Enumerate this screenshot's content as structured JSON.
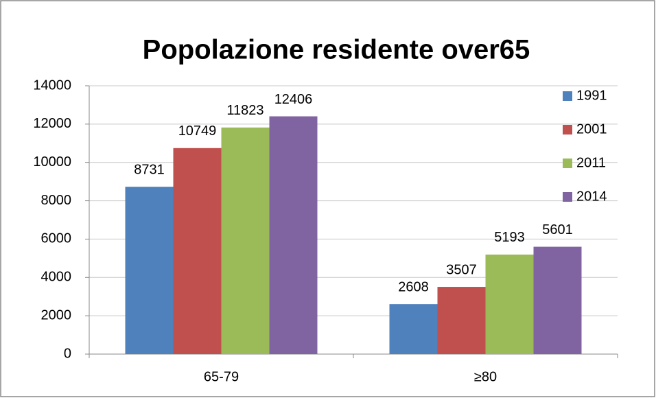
{
  "chart_data": {
    "type": "bar",
    "title": "Popolazione residente over65",
    "categories": [
      "65-79",
      "≥80"
    ],
    "series": [
      {
        "name": "1991",
        "color": "#4f81bd",
        "values": [
          8731,
          2608
        ]
      },
      {
        "name": "2001",
        "color": "#c0504d",
        "values": [
          10749,
          3507
        ]
      },
      {
        "name": "2011",
        "color": "#9bbb59",
        "values": [
          11823,
          5193
        ]
      },
      {
        "name": "2014",
        "color": "#8064a2",
        "values": [
          12406,
          5601
        ]
      }
    ],
    "ylim": [
      0,
      14000
    ],
    "yticks": [
      0,
      2000,
      4000,
      6000,
      8000,
      10000,
      12000,
      14000
    ],
    "grid": true,
    "legend": "right",
    "data_labels": true
  }
}
